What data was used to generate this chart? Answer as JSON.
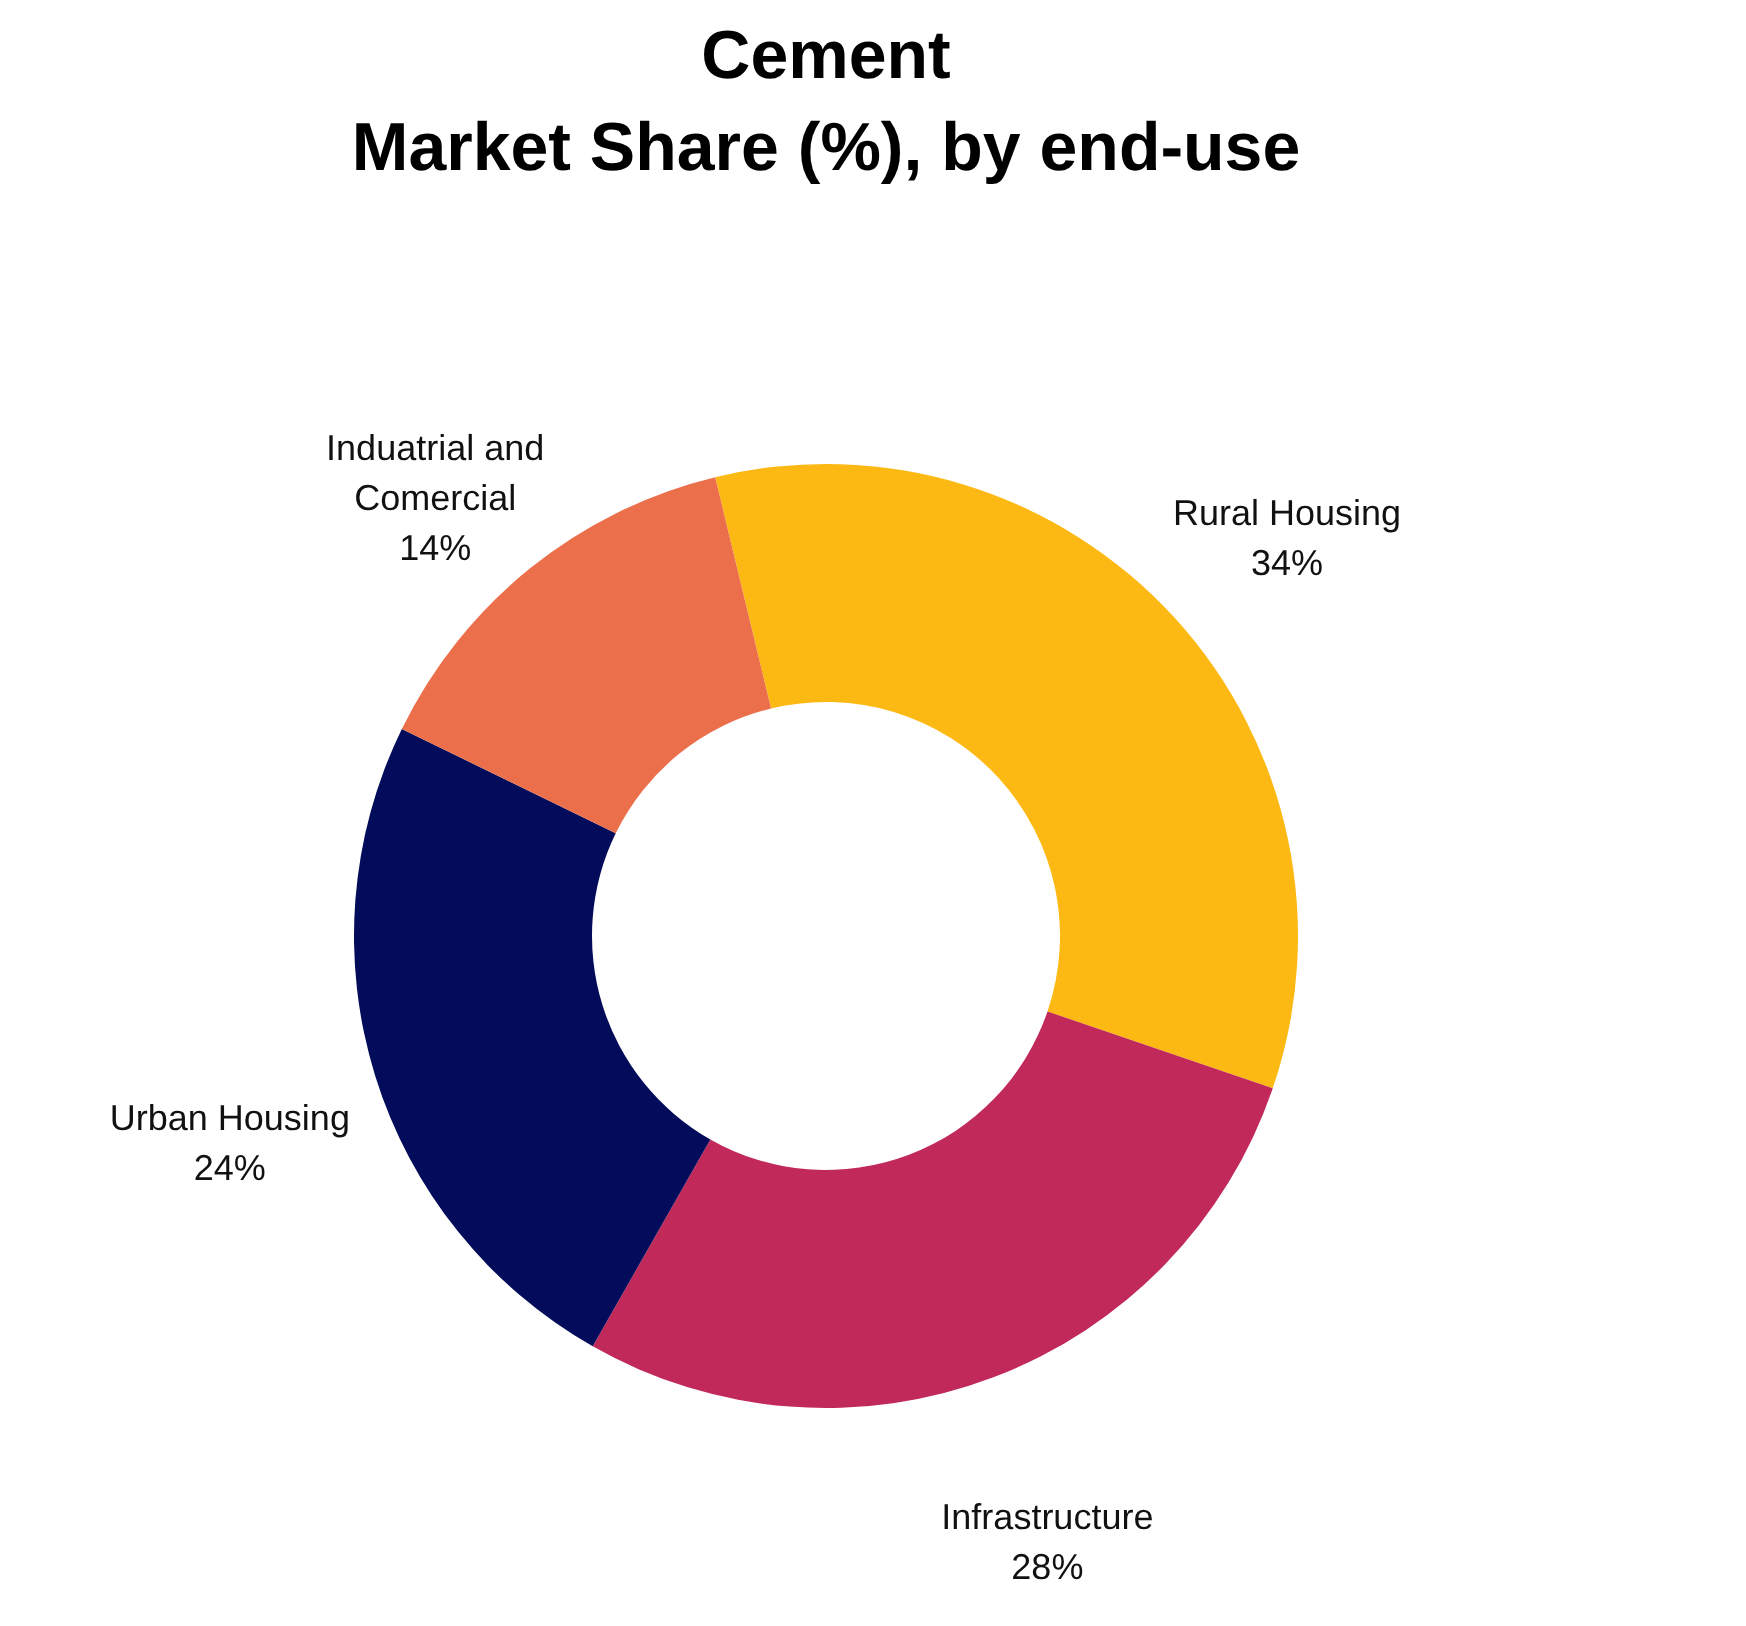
{
  "chart_data": {
    "type": "donut",
    "title": "Cement\nMarket Share (%), by end-use",
    "categories": [
      "Rural Housing",
      "Infrastructure",
      "Urban Housing",
      "Induatrial and\nComercial"
    ],
    "values": [
      34,
      28,
      24,
      14
    ],
    "colors": [
      "#fdb913",
      "#c0295a",
      "#020c5a",
      "#ec6f4c"
    ],
    "value_labels": [
      "34%",
      "28%",
      "24%",
      "14%"
    ]
  }
}
